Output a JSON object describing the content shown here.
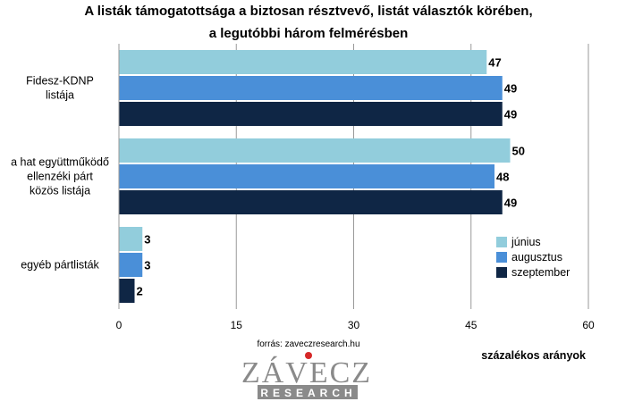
{
  "chart_data": {
    "type": "bar",
    "orientation": "horizontal",
    "title_lines": [
      "A listák támogatottsága a biztosan résztvevő, listát választók körében,",
      "a legutóbbi három felmérésben"
    ],
    "categories": [
      [
        "Fidesz-KDNP",
        "listája"
      ],
      [
        "a hat együttműködő",
        "ellenzéki párt",
        "közös listája"
      ],
      [
        "egyéb pártlisták"
      ]
    ],
    "series": [
      {
        "name": "június",
        "color": "#92cddc",
        "values": [
          47,
          50,
          3
        ]
      },
      {
        "name": "augusztus",
        "color": "#4a8fd8",
        "values": [
          49,
          48,
          3
        ]
      },
      {
        "name": "szeptember",
        "color": "#0f2645",
        "values": [
          49,
          49,
          2
        ]
      }
    ],
    "xlim": [
      0,
      60
    ],
    "xticks": [
      "0",
      "15",
      "30",
      "45",
      "60"
    ],
    "xlabel": "százalékos arányok",
    "grid": true,
    "legend_position": "right",
    "source": "forrás: zaveczresearch.hu",
    "logo": {
      "top": "ZÁVECZ",
      "bottom": "RESEARCH",
      "accent_color": "#d62828"
    }
  }
}
